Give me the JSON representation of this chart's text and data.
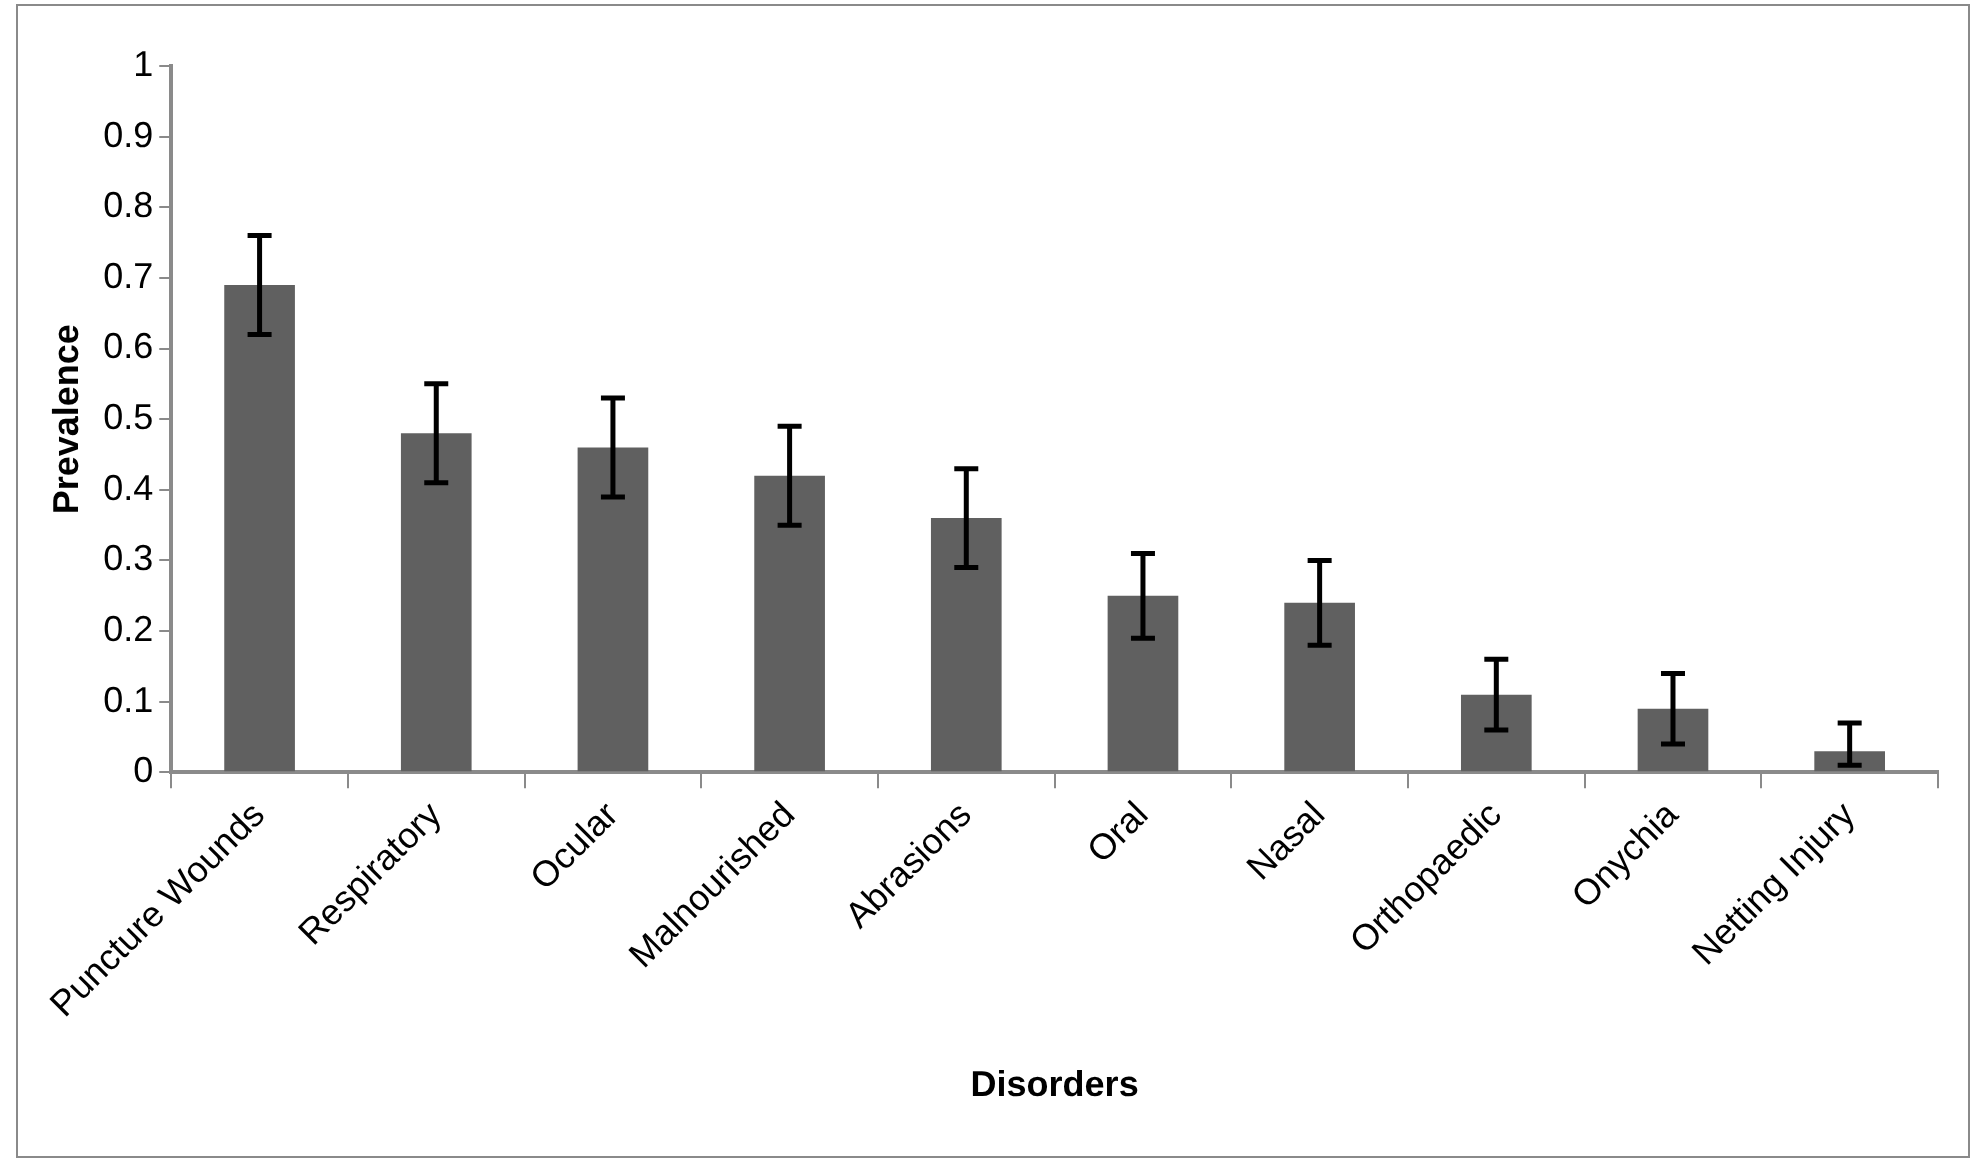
{
  "chart_data": {
    "type": "bar",
    "xlabel": "Disorders",
    "ylabel": "Prevalence",
    "categories": [
      "Puncture Wounds",
      "Respiratory",
      "Ocular",
      "Malnourished",
      "Abrasions",
      "Oral",
      "Nasal",
      "Orthopaedic",
      "Onychia",
      "Netting Injury"
    ],
    "values": [
      0.69,
      0.48,
      0.46,
      0.42,
      0.36,
      0.25,
      0.24,
      0.11,
      0.09,
      0.03
    ],
    "errors": [
      0.07,
      0.07,
      0.07,
      0.07,
      0.07,
      0.06,
      0.06,
      0.05,
      0.05,
      [
        0.01,
        0.07
      ]
    ],
    "color": "#606060",
    "ylim": [
      0,
      1
    ],
    "yticks": [
      0,
      0.1,
      0.2,
      0.3,
      0.4,
      0.5,
      0.6,
      0.7,
      0.8,
      0.9,
      1
    ],
    "grid": false,
    "legend": false
  }
}
